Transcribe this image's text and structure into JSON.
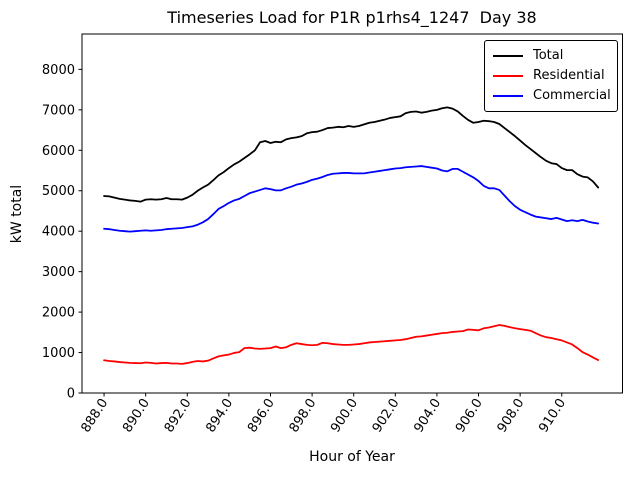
{
  "chart_data": {
    "type": "line",
    "title": "Timeseries Load for P1R p1rhs4_1247  Day 38",
    "xlabel": "Hour of Year",
    "ylabel": "kW total",
    "grid": false,
    "legend_position": "upper-right",
    "xlim": [
      886.94,
      912.92
    ],
    "ylim": [
      0,
      8875
    ],
    "x_ticks": [
      "888.0",
      "890.0",
      "892.0",
      "894.0",
      "896.0",
      "898.0",
      "900.0",
      "902.0",
      "904.0",
      "906.0",
      "908.0",
      "910.0"
    ],
    "x_tick_values": [
      888,
      890,
      892,
      894,
      896,
      898,
      900,
      902,
      904,
      906,
      908,
      910
    ],
    "y_ticks": [
      "0",
      "1000",
      "2000",
      "3000",
      "4000",
      "5000",
      "6000",
      "7000",
      "8000"
    ],
    "y_tick_values": [
      0,
      1000,
      2000,
      3000,
      4000,
      5000,
      6000,
      7000,
      8000
    ],
    "x": [
      888.0,
      888.25,
      888.5,
      888.75,
      889.0,
      889.25,
      889.5,
      889.75,
      890.0,
      890.25,
      890.5,
      890.75,
      891.0,
      891.25,
      891.5,
      891.75,
      892.0,
      892.25,
      892.5,
      892.75,
      893.0,
      893.25,
      893.5,
      893.75,
      894.0,
      894.25,
      894.5,
      894.75,
      895.0,
      895.25,
      895.5,
      895.75,
      896.0,
      896.25,
      896.5,
      896.75,
      897.0,
      897.25,
      897.5,
      897.75,
      898.0,
      898.25,
      898.5,
      898.75,
      899.0,
      899.25,
      899.5,
      899.75,
      900.0,
      900.25,
      900.5,
      900.75,
      901.0,
      901.25,
      901.5,
      901.75,
      902.0,
      902.25,
      902.5,
      902.75,
      903.0,
      903.25,
      903.5,
      903.75,
      904.0,
      904.25,
      904.5,
      904.75,
      905.0,
      905.25,
      905.5,
      905.75,
      906.0,
      906.25,
      906.5,
      906.75,
      907.0,
      907.25,
      907.5,
      907.75,
      908.0,
      908.25,
      908.5,
      908.75,
      909.0,
      909.25,
      909.5,
      909.75,
      910.0,
      910.25,
      910.5,
      910.75,
      911.0,
      911.25,
      911.5,
      911.75
    ],
    "series": [
      {
        "name": "Total",
        "color": "#000000",
        "values": [
          4870,
          4860,
          4830,
          4800,
          4780,
          4760,
          4750,
          4730,
          4780,
          4790,
          4780,
          4790,
          4820,
          4790,
          4790,
          4780,
          4830,
          4900,
          5000,
          5080,
          5150,
          5260,
          5380,
          5460,
          5560,
          5650,
          5720,
          5810,
          5900,
          6000,
          6200,
          6230,
          6180,
          6210,
          6200,
          6270,
          6300,
          6320,
          6350,
          6420,
          6450,
          6460,
          6500,
          6550,
          6560,
          6580,
          6570,
          6600,
          6580,
          6600,
          6640,
          6680,
          6700,
          6730,
          6760,
          6800,
          6820,
          6840,
          6920,
          6950,
          6960,
          6930,
          6950,
          6980,
          7000,
          7040,
          7060,
          7030,
          6960,
          6850,
          6750,
          6680,
          6700,
          6730,
          6720,
          6700,
          6650,
          6550,
          6450,
          6350,
          6240,
          6130,
          6030,
          5930,
          5830,
          5740,
          5680,
          5660,
          5560,
          5510,
          5510,
          5410,
          5350,
          5330,
          5230,
          5080
        ]
      },
      {
        "name": "Residential",
        "color": "#ff0000",
        "values": [
          810,
          790,
          780,
          765,
          755,
          745,
          740,
          735,
          755,
          745,
          730,
          740,
          745,
          730,
          730,
          720,
          740,
          770,
          790,
          780,
          800,
          855,
          905,
          930,
          950,
          990,
          1010,
          1110,
          1120,
          1100,
          1090,
          1100,
          1110,
          1150,
          1110,
          1130,
          1190,
          1230,
          1210,
          1190,
          1180,
          1190,
          1240,
          1230,
          1210,
          1200,
          1190,
          1190,
          1200,
          1210,
          1230,
          1250,
          1260,
          1270,
          1280,
          1290,
          1300,
          1310,
          1330,
          1360,
          1390,
          1400,
          1420,
          1440,
          1460,
          1480,
          1490,
          1510,
          1520,
          1530,
          1570,
          1560,
          1550,
          1600,
          1620,
          1650,
          1680,
          1660,
          1630,
          1600,
          1580,
          1560,
          1540,
          1480,
          1420,
          1380,
          1360,
          1330,
          1300,
          1250,
          1200,
          1110,
          1010,
          950,
          880,
          815
        ]
      },
      {
        "name": "Commercial",
        "color": "#0000ff",
        "values": [
          4060,
          4050,
          4030,
          4010,
          4000,
          3990,
          4000,
          4010,
          4020,
          4010,
          4020,
          4030,
          4050,
          4060,
          4070,
          4080,
          4100,
          4120,
          4160,
          4220,
          4300,
          4420,
          4550,
          4620,
          4700,
          4760,
          4800,
          4870,
          4940,
          4980,
          5020,
          5060,
          5040,
          5010,
          5010,
          5060,
          5100,
          5150,
          5180,
          5220,
          5270,
          5300,
          5340,
          5390,
          5420,
          5430,
          5440,
          5440,
          5430,
          5430,
          5430,
          5450,
          5470,
          5490,
          5510,
          5530,
          5550,
          5560,
          5580,
          5590,
          5600,
          5610,
          5590,
          5570,
          5550,
          5500,
          5480,
          5540,
          5540,
          5470,
          5400,
          5330,
          5240,
          5120,
          5060,
          5060,
          5020,
          4880,
          4740,
          4620,
          4530,
          4470,
          4410,
          4360,
          4340,
          4320,
          4300,
          4330,
          4290,
          4250,
          4270,
          4250,
          4280,
          4240,
          4210,
          4190
        ]
      }
    ]
  }
}
